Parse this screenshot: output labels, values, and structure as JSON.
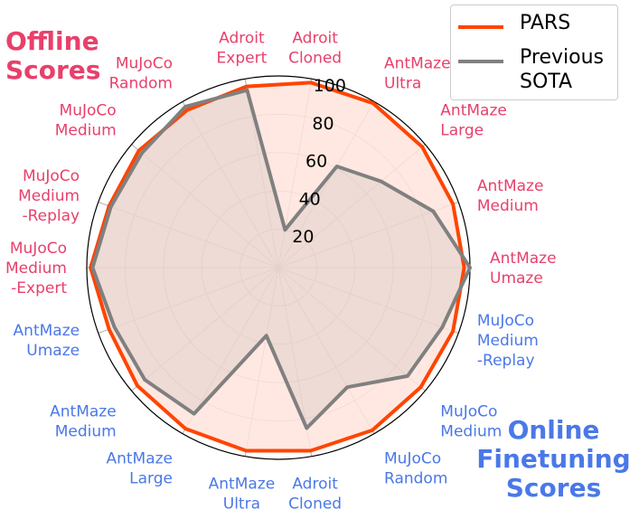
{
  "titles": {
    "offline": "Offline\nScores",
    "online": "Online\nFinetuning\nScores"
  },
  "colors": {
    "pars": "#ff4500",
    "pars_fill": "#ffe4dc",
    "previous": "#808080",
    "offline_label": "#e8406b",
    "online_label": "#4a78e8"
  },
  "chart_data": {
    "type": "radar",
    "rlim": [
      0,
      100
    ],
    "rticks": [
      20,
      40,
      60,
      80,
      100
    ],
    "legend_position": "top-right",
    "grid": true,
    "categories": [
      {
        "label": "Adroit\nCloned",
        "group": "offline"
      },
      {
        "label": "AntMaze\nUltra",
        "group": "offline"
      },
      {
        "label": "AntMaze\nLarge",
        "group": "offline"
      },
      {
        "label": "AntMaze\nMedium",
        "group": "offline"
      },
      {
        "label": "AntMaze\nUmaze",
        "group": "offline"
      },
      {
        "label": "MuJoCo\nMedium\n-Replay",
        "group": "online"
      },
      {
        "label": "MuJoCo\nMedium",
        "group": "online"
      },
      {
        "label": "MuJoCo\nRandom",
        "group": "online"
      },
      {
        "label": "Adroit\nCloned",
        "group": "online"
      },
      {
        "label": "AntMaze\nUltra",
        "group": "online"
      },
      {
        "label": "AntMaze\nLarge",
        "group": "online"
      },
      {
        "label": "AntMaze\nMedium",
        "group": "online"
      },
      {
        "label": "AntMaze\nUmaze",
        "group": "online"
      },
      {
        "label": "MuJoCo\nMedium\n-Expert",
        "group": "offline"
      },
      {
        "label": "MuJoCo\nMedium\n-Replay",
        "group": "offline"
      },
      {
        "label": "MuJoCo\nMedium",
        "group": "offline"
      },
      {
        "label": "MuJoCo\nRandom",
        "group": "offline"
      },
      {
        "label": "Adroit\nExpert",
        "group": "offline"
      }
    ],
    "series": [
      {
        "name": "PARS",
        "values": [
          98,
          99,
          98,
          97,
          97,
          97,
          97,
          98,
          97,
          97,
          97,
          96,
          94,
          98,
          94,
          95,
          95,
          96
        ]
      },
      {
        "name": "Previous\nSOTA",
        "values": [
          20,
          61,
          70,
          86,
          100,
          91,
          88,
          72,
          85,
          36,
          88,
          91,
          91,
          97,
          93,
          93,
          97,
          94
        ]
      }
    ]
  }
}
